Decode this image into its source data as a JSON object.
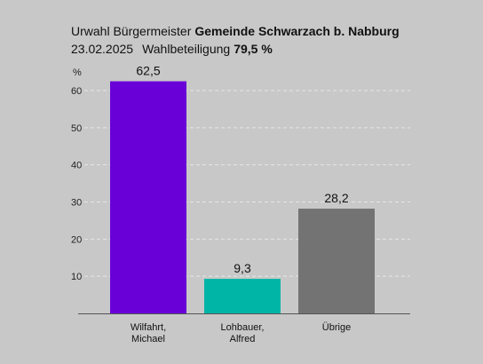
{
  "header": {
    "prefix": "Urwahl Bürgermeister",
    "municipality": "Gemeinde Schwarzach b. Nabburg",
    "date": "23.02.2025",
    "turnout_label": "Wahlbeteiligung",
    "turnout_value": "79,5 %"
  },
  "colors": {
    "background": "#c8c8c8",
    "gridline": "#e6e6e6",
    "axis": "#555555"
  },
  "chart_data": {
    "type": "bar",
    "title": "",
    "xlabel": "",
    "ylabel": "%",
    "ylim": [
      0,
      70
    ],
    "yticks": [
      10,
      20,
      30,
      40,
      50,
      60
    ],
    "grid": true,
    "categories": [
      [
        "Wilfahrt,",
        "Michael"
      ],
      [
        "Lohbauer,",
        "Alfred"
      ],
      [
        "Übrige"
      ]
    ],
    "values": [
      62.5,
      9.3,
      28.2
    ],
    "value_labels": [
      "62,5",
      "9,3",
      "28,2"
    ],
    "bar_colors": [
      "#6a00d8",
      "#00b5a6",
      "#737373"
    ]
  }
}
